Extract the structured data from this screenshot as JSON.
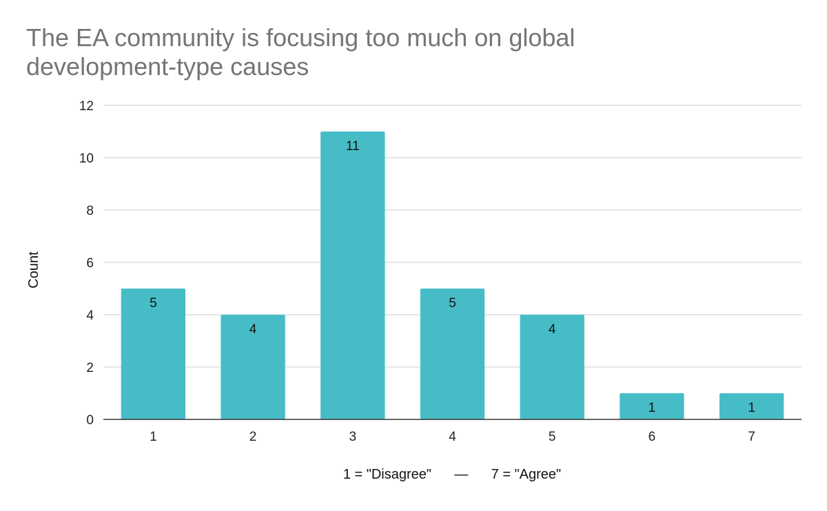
{
  "chart_data": {
    "type": "bar",
    "title": "The EA community is focusing too much on global development-type causes",
    "xlabel": "1 = \"Disagree\"      —      7 = \"Agree\"",
    "ylabel": "Count",
    "categories": [
      "1",
      "2",
      "3",
      "4",
      "5",
      "6",
      "7"
    ],
    "values": [
      5,
      4,
      11,
      5,
      4,
      1,
      1
    ],
    "ylim": [
      0,
      12
    ],
    "yticks": [
      0,
      2,
      4,
      6,
      8,
      10,
      12
    ],
    "grid": true,
    "legend": "none",
    "bar_color": "#46BDC6",
    "data_labels": true
  }
}
